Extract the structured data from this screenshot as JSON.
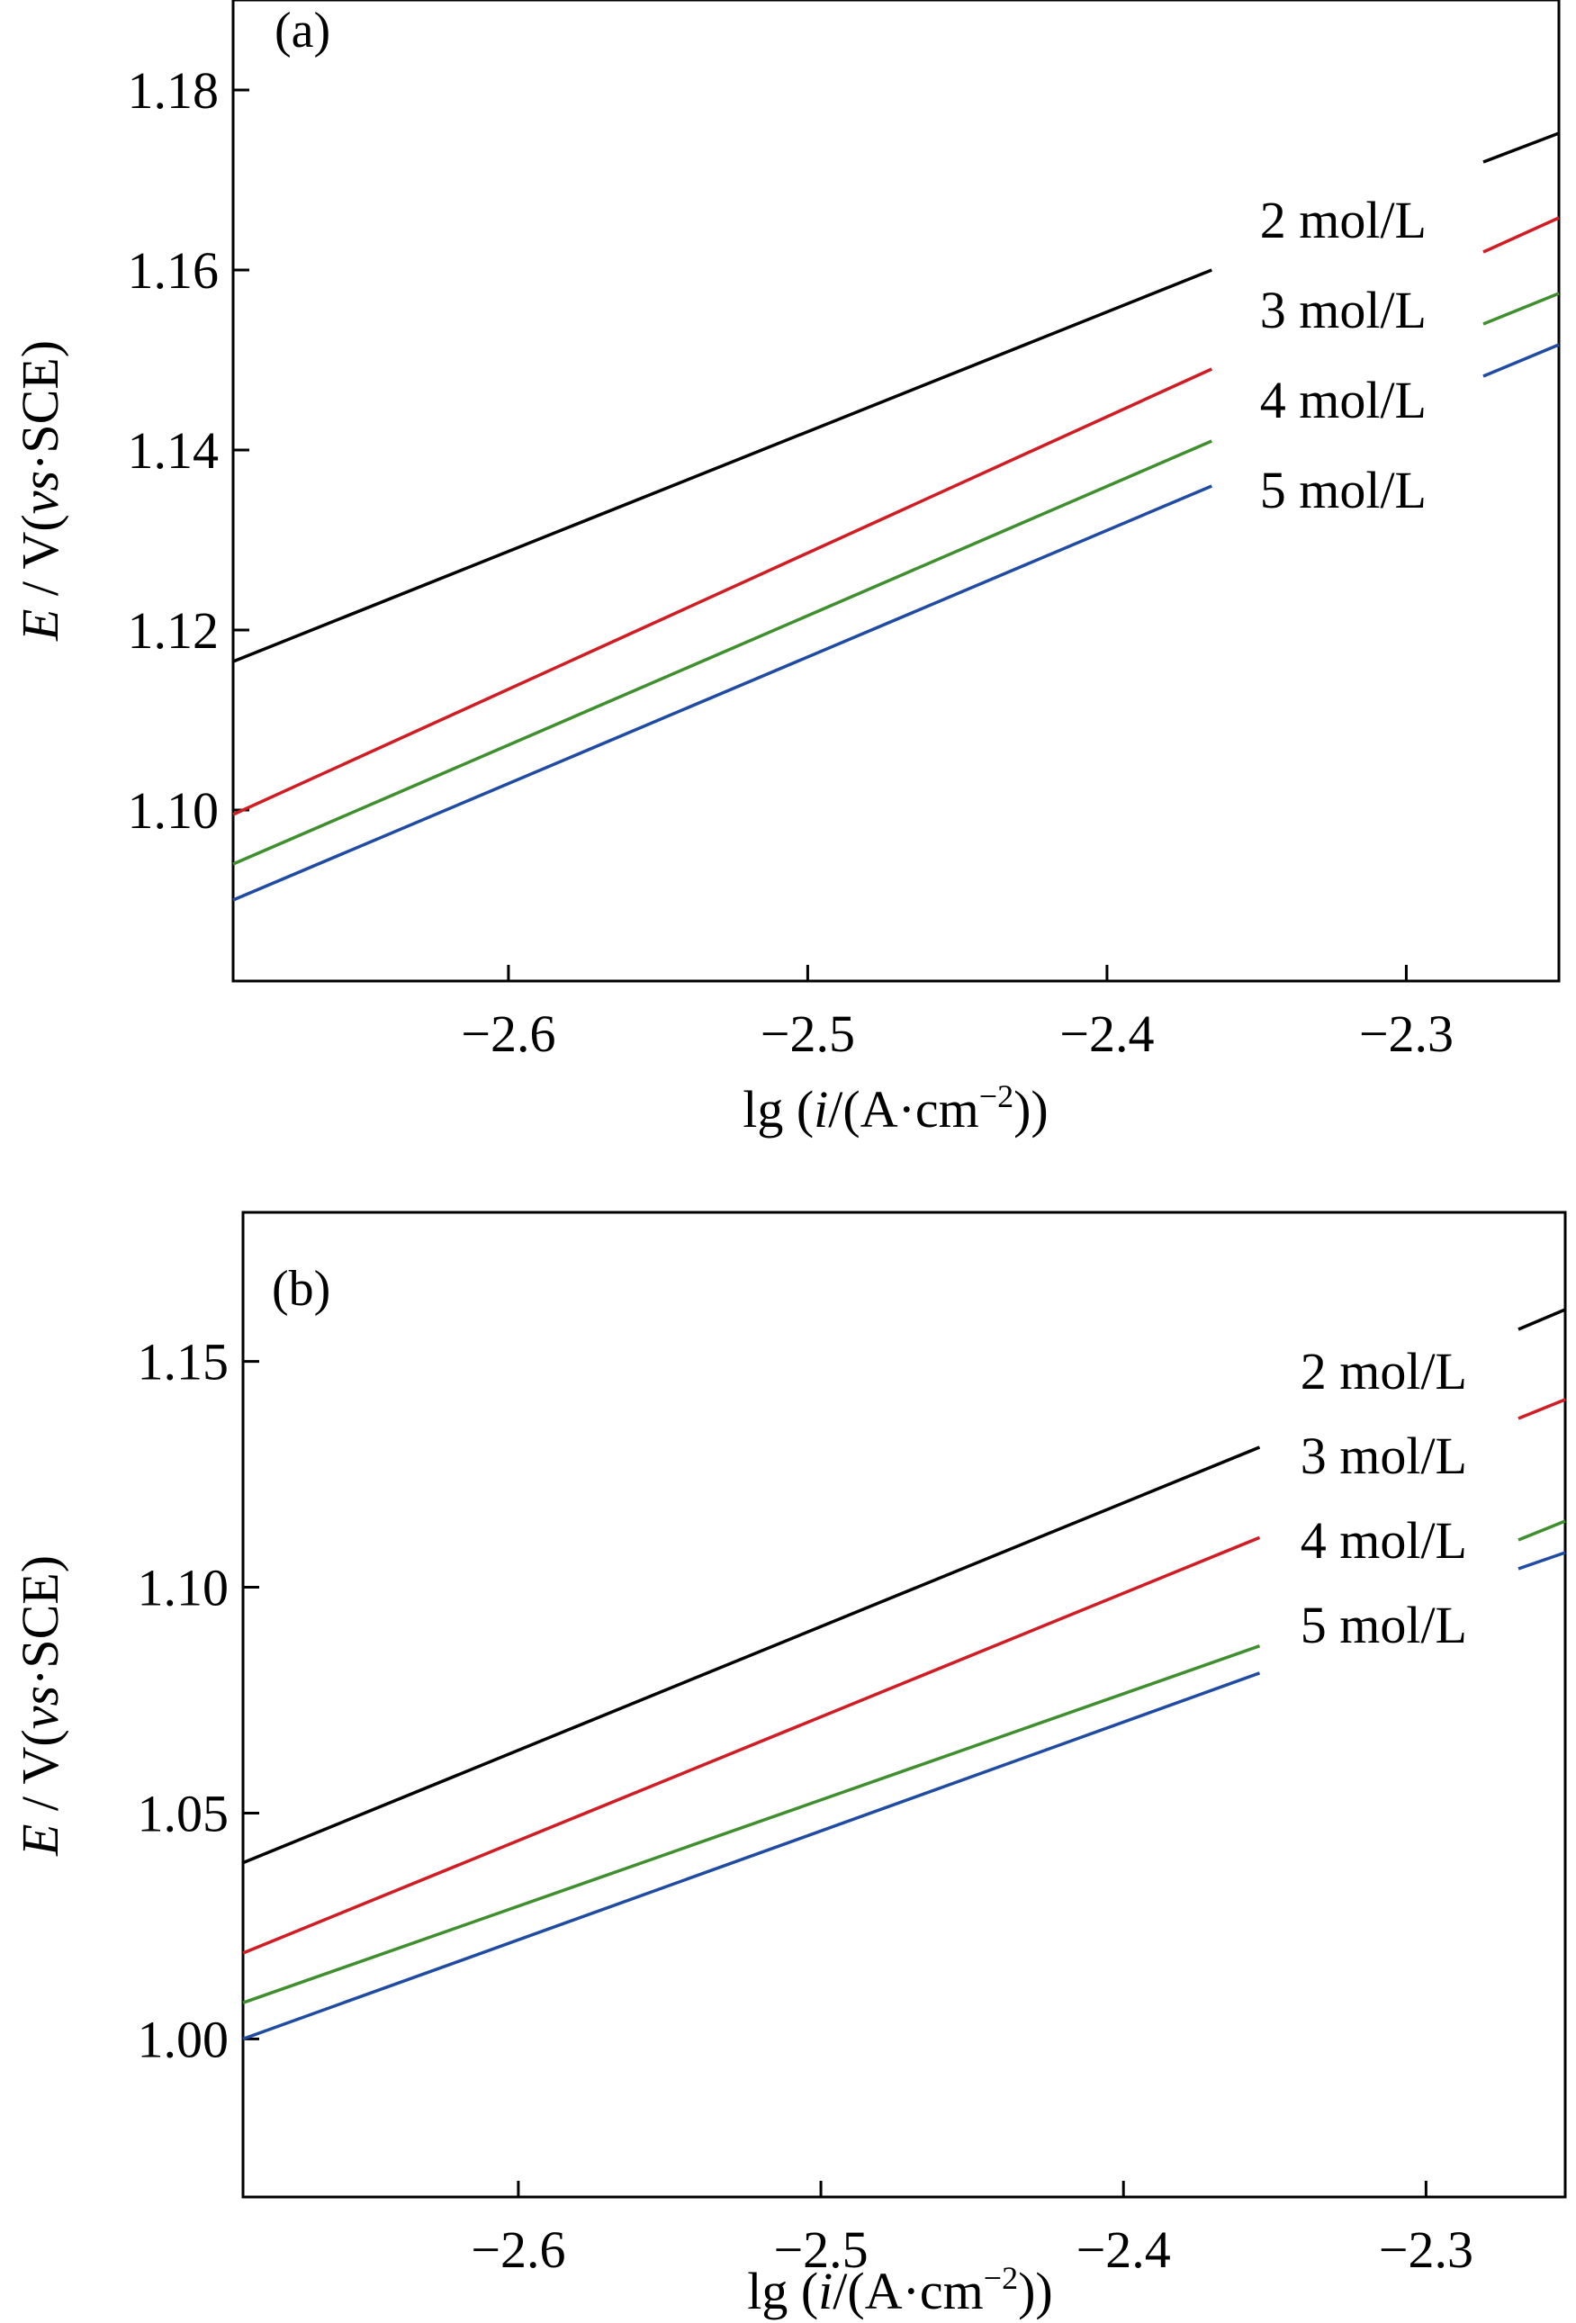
{
  "figure": {
    "charts": [
      {
        "panel_label": "(a)"
      },
      {
        "panel_label": "(b)"
      }
    ]
  },
  "chart_data": [
    {
      "type": "line",
      "panel_label": "(a)",
      "xlabel": "lg (i/(A·cm−2))",
      "ylabel": "E / V(vs·SCE)",
      "xlim": [
        -2.692,
        -2.249
      ],
      "ylim": [
        1.081,
        1.19
      ],
      "xticks": [
        -2.6,
        -2.5,
        -2.4,
        -2.3
      ],
      "xtick_labels": [
        "−2.6",
        "−2.5",
        "−2.4",
        "−2.3"
      ],
      "yticks": [
        1.1,
        1.12,
        1.14,
        1.16,
        1.18
      ],
      "ytick_labels": [
        "1.10",
        "1.12",
        "1.14",
        "1.16",
        "1.18"
      ],
      "legend": "top-right",
      "series": [
        {
          "name": "2 mol/L",
          "color": "#000000",
          "x": [
            -2.692,
            -2.365
          ],
          "y": [
            1.1165,
            1.16
          ]
        },
        {
          "name": "3 mol/L",
          "color": "#d01c22",
          "x": [
            -2.692,
            -2.365
          ],
          "y": [
            1.0995,
            1.149
          ]
        },
        {
          "name": "4 mol/L",
          "color": "#3f8f2f",
          "x": [
            -2.692,
            -2.365
          ],
          "y": [
            1.094,
            1.141
          ]
        },
        {
          "name": "5 mol/L",
          "color": "#1f4ba3",
          "x": [
            -2.692,
            -2.365
          ],
          "y": [
            1.09,
            1.136
          ]
        }
      ]
    },
    {
      "type": "line",
      "panel_label": "(b)",
      "xlabel": "lg (i/(A·cm−2))",
      "ylabel": "E / V(vs·SCE)",
      "xlim": [
        -2.691,
        -2.254
      ],
      "ylim": [
        0.965,
        1.183
      ],
      "xticks": [
        -2.6,
        -2.5,
        -2.4,
        -2.3
      ],
      "xtick_labels": [
        "−2.6",
        "−2.5",
        "−2.4",
        "−2.3"
      ],
      "yticks": [
        1.0,
        1.05,
        1.1,
        1.15
      ],
      "ytick_labels": [
        "1.00",
        "1.05",
        "1.10",
        "1.15"
      ],
      "legend": "top-right",
      "series": [
        {
          "name": "2 mol/L",
          "color": "#000000",
          "x": [
            -2.691,
            -2.355
          ],
          "y": [
            1.039,
            1.131
          ]
        },
        {
          "name": "3 mol/L",
          "color": "#d01c22",
          "x": [
            -2.691,
            -2.355
          ],
          "y": [
            1.019,
            1.111
          ]
        },
        {
          "name": "4 mol/L",
          "color": "#3f8f2f",
          "x": [
            -2.691,
            -2.355
          ],
          "y": [
            1.008,
            1.087
          ]
        },
        {
          "name": "5 mol/L",
          "color": "#1f4ba3",
          "x": [
            -2.691,
            -2.355
          ],
          "y": [
            1.0,
            1.081
          ]
        }
      ]
    }
  ]
}
